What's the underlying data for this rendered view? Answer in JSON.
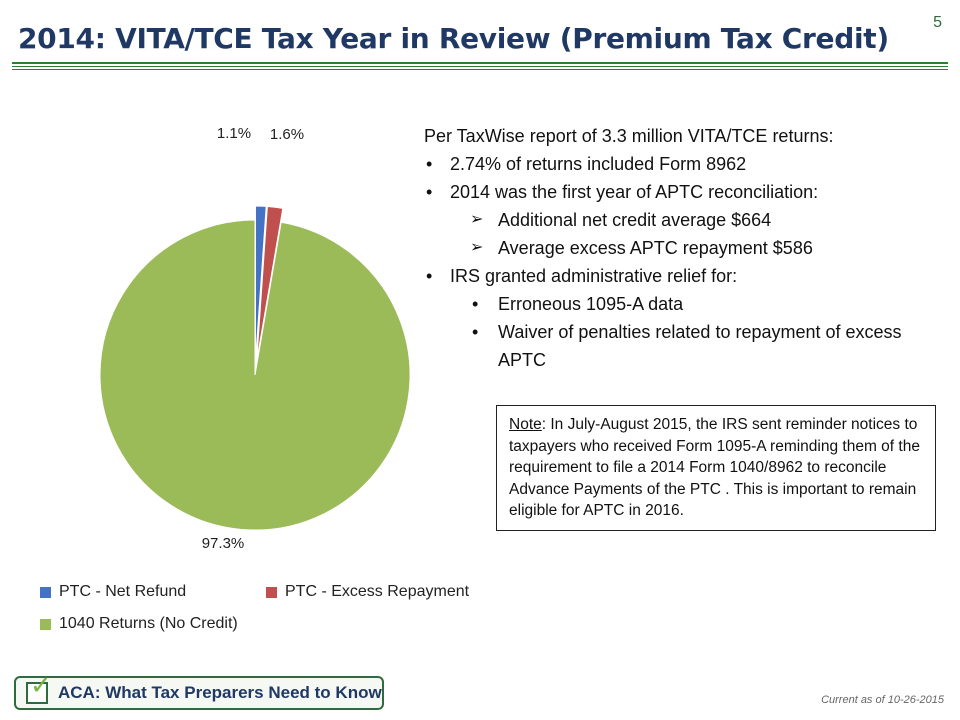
{
  "slide": {
    "title": "2014: VITA/TCE Tax Year in Review (Premium Tax Credit)",
    "number": "5"
  },
  "chart_data": {
    "type": "pie",
    "title": "",
    "slices": [
      {
        "name": "PTC - Net Refund",
        "value": 1.1,
        "label": "1.1%",
        "color": "#4472c4"
      },
      {
        "name": "PTC - Excess Repayment",
        "value": 1.6,
        "label": "1.6%",
        "color": "#c0504d"
      },
      {
        "name": "1040 Returns  (No Credit)",
        "value": 97.3,
        "label": "97.3%",
        "color": "#9bbb59"
      }
    ],
    "legend_position": "bottom",
    "exploded": true
  },
  "bullets": {
    "intro": "Per TaxWise report of 3.3 million VITA/TCE returns:",
    "items": [
      "2.74% of returns included Form 8962",
      "2014 was the first year of APTC reconciliation:",
      "Additional net credit average $664",
      "Average excess APTC repayment $586",
      "IRS granted administrative relief for:",
      "Erroneous 1095-A data",
      "Waiver of penalties related to repayment of excess APTC"
    ]
  },
  "note": {
    "label": "Note",
    "text": ": In July-August 2015, the IRS sent reminder notices to taxpayers who received Form 1095-A reminding them of the requirement to file a 2014 Form 1040/8962 to reconcile Advance Payments of the PTC . This is important to remain eligible for APTC in 2016."
  },
  "footer": {
    "logo_text": "ACA: What Tax Preparers Need to Know",
    "current_as_of": "Current as of 10-26-2015"
  }
}
